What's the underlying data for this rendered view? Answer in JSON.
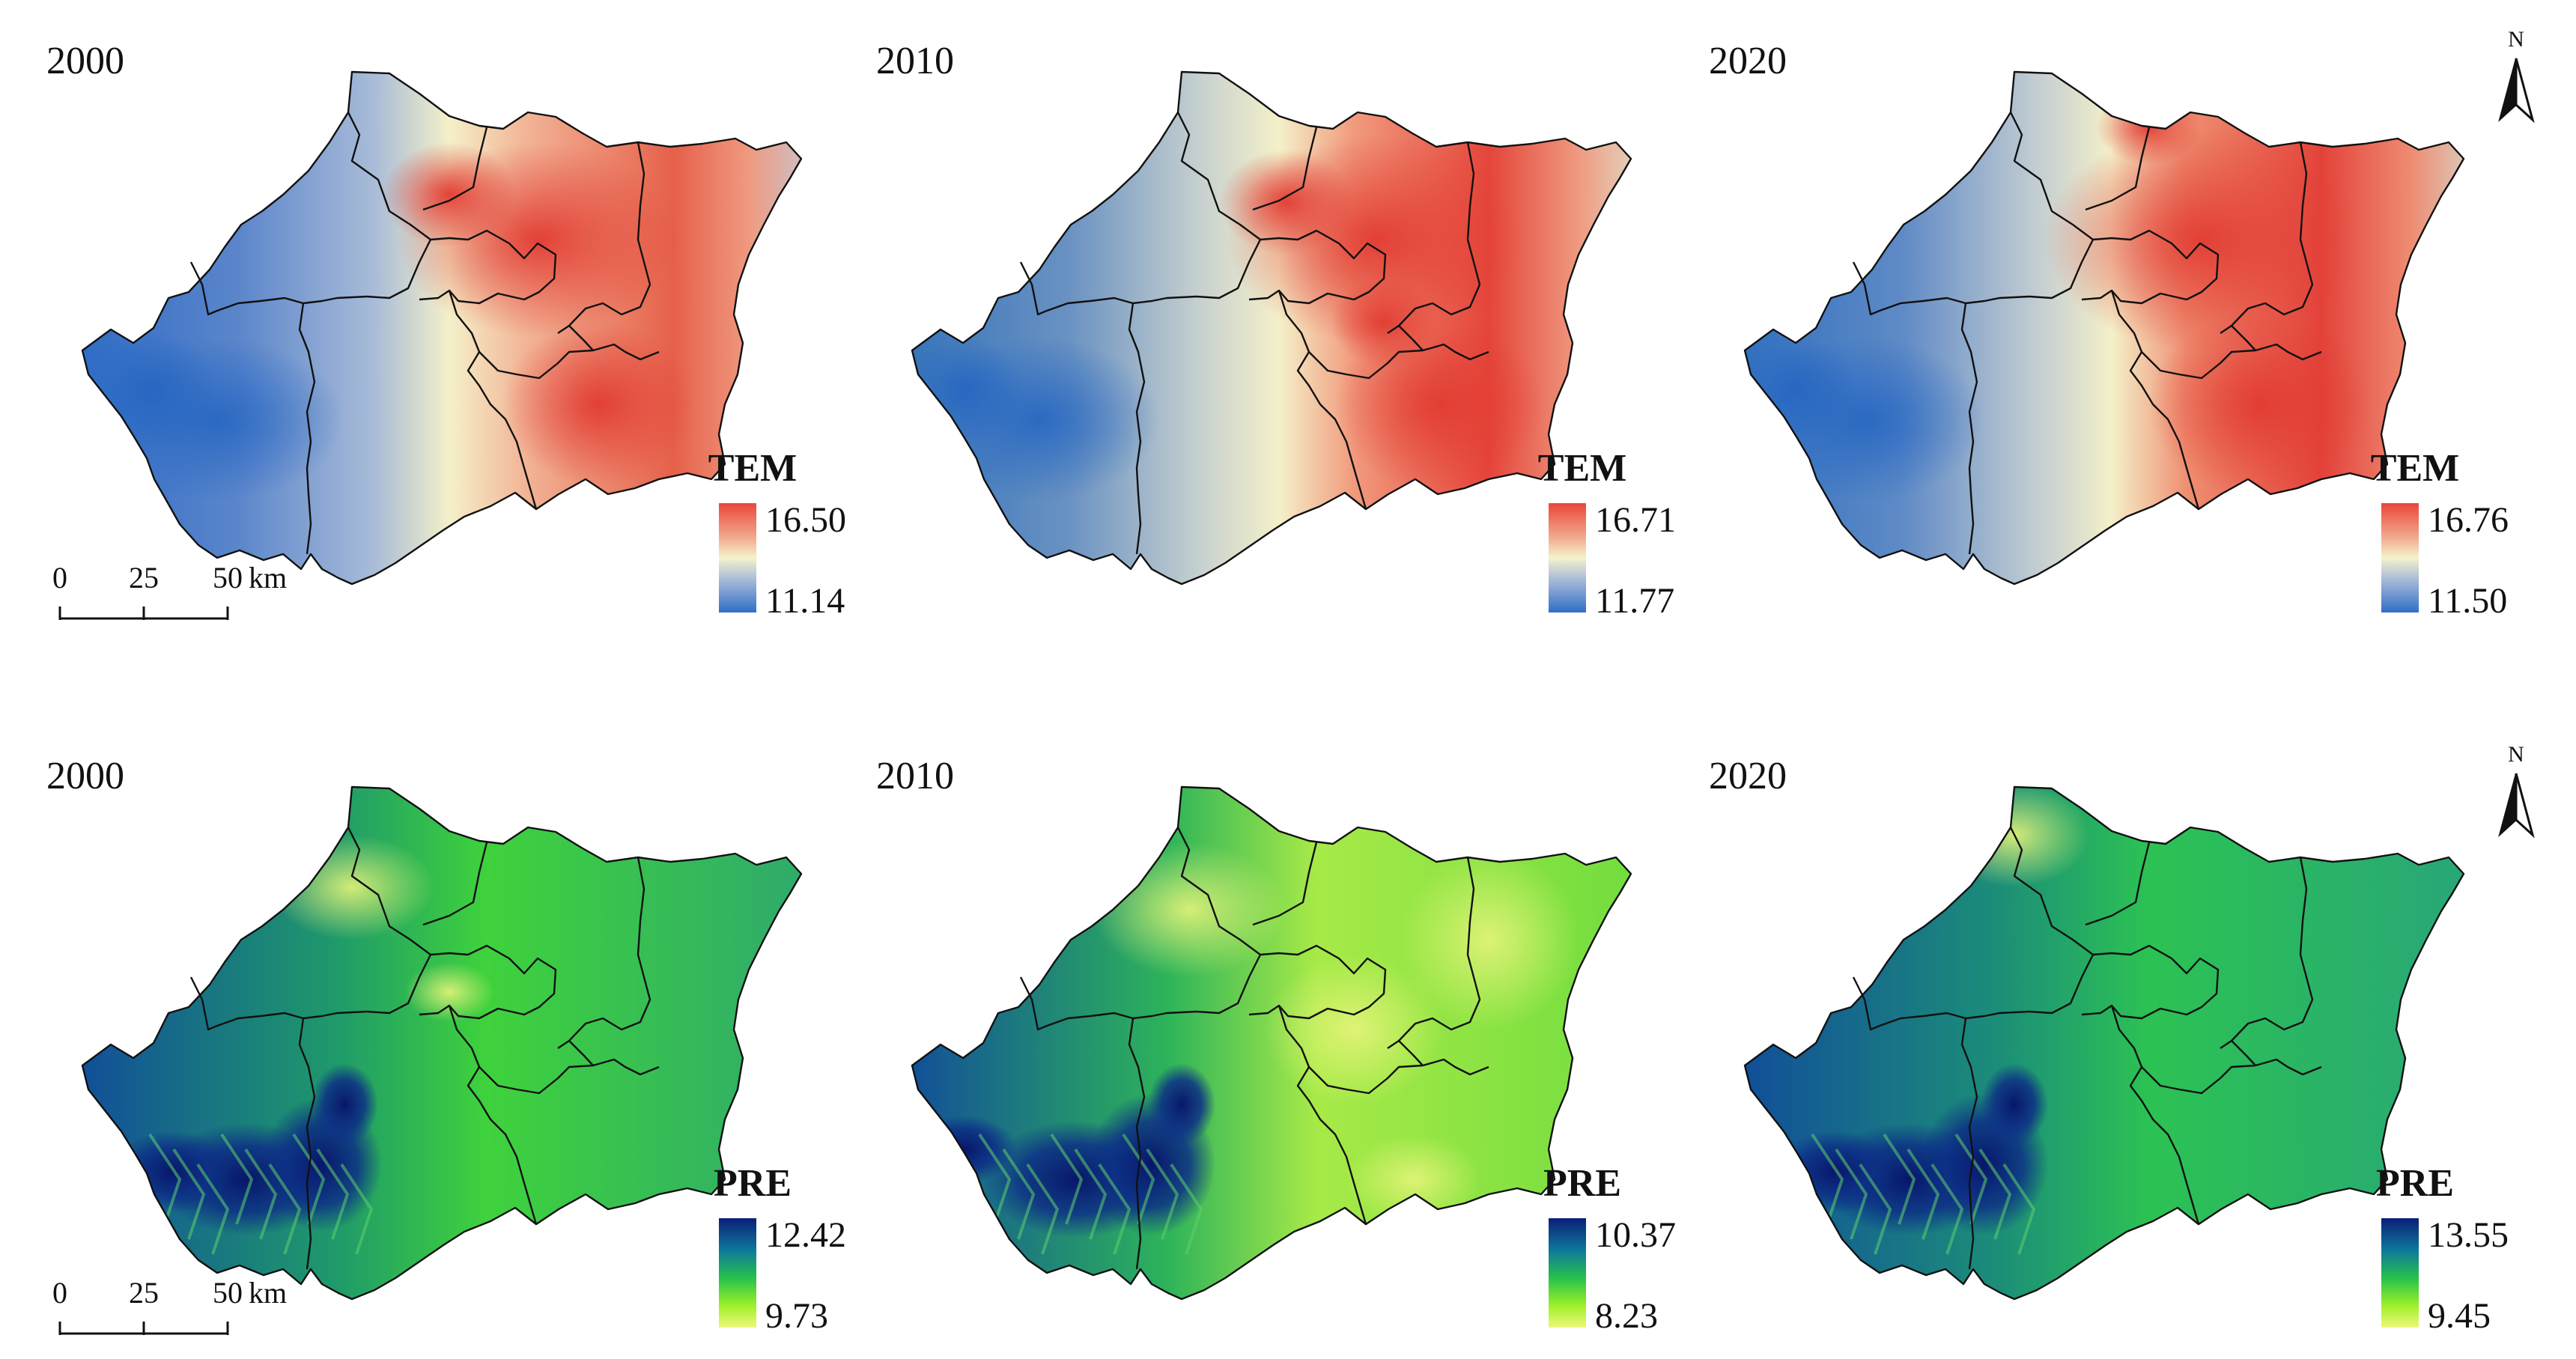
{
  "panels": [
    {
      "row": "tem",
      "year": "2000",
      "title": "TEM",
      "high": "16.50",
      "low": "11.14",
      "show_scalebar": true,
      "show_north": false,
      "style": 0
    },
    {
      "row": "tem",
      "year": "2010",
      "title": "TEM",
      "high": "16.71",
      "low": "11.77",
      "show_scalebar": false,
      "show_north": false,
      "style": 1
    },
    {
      "row": "tem",
      "year": "2020",
      "title": "TEM",
      "high": "16.76",
      "low": "11.50",
      "show_scalebar": false,
      "show_north": true,
      "style": 2
    },
    {
      "row": "pre",
      "year": "2000",
      "title": "PRE",
      "high": "12.42",
      "low": "9.73",
      "show_scalebar": true,
      "show_north": false,
      "style": 0
    },
    {
      "row": "pre",
      "year": "2010",
      "title": "PRE",
      "high": "10.37",
      "low": "8.23",
      "show_scalebar": false,
      "show_north": false,
      "style": 1
    },
    {
      "row": "pre",
      "year": "2020",
      "title": "PRE",
      "high": "13.55",
      "low": "9.45",
      "show_scalebar": false,
      "show_north": true,
      "style": 2
    }
  ],
  "scalebar": {
    "ticks": [
      "0",
      "25",
      "50"
    ],
    "unit": "km"
  },
  "north_label": "N",
  "colors": {
    "tem_ramp": [
      "#2f6fc7",
      "#9fb5d8",
      "#f5f2cc",
      "#f2a58a",
      "#e8473a"
    ],
    "pre_ramp": [
      "#0a1f7a",
      "#0f7a9a",
      "#27c24a",
      "#9ff02a",
      "#eef77a"
    ],
    "boundary": "#111111"
  }
}
